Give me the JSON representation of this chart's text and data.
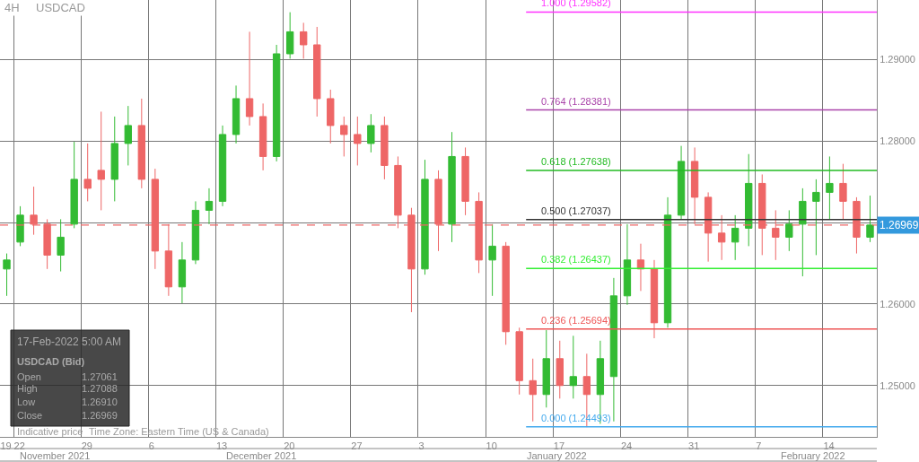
{
  "chart_data": {
    "type": "candlestick",
    "title": "4H",
    "subtitle": "USDCAD",
    "categories": [
      "19",
      "22",
      null,
      null,
      null,
      null,
      "29",
      null,
      null,
      null,
      null,
      "6",
      null,
      null,
      null,
      null,
      "13",
      null,
      null,
      null,
      null,
      "20",
      null,
      null,
      null,
      null,
      "27",
      null,
      null,
      null,
      null,
      "3",
      null,
      null,
      null,
      null,
      "10",
      null,
      null,
      null,
      null,
      "17",
      null,
      null,
      null,
      null,
      "24",
      null,
      null,
      null,
      null,
      "31",
      null,
      null,
      null,
      null,
      "7",
      null,
      null,
      null,
      null,
      "14",
      null,
      null,
      null
    ],
    "ohlc": [
      [
        1.2643,
        1.2662,
        1.261,
        1.2654
      ],
      [
        1.2676,
        1.272,
        1.2671,
        1.2709
      ],
      [
        1.2709,
        1.2744,
        1.2685,
        1.2698
      ],
      [
        1.2698,
        1.2704,
        1.2643,
        1.266
      ],
      [
        1.266,
        1.2704,
        1.264,
        1.2682
      ],
      [
        1.2698,
        1.2799,
        1.2693,
        1.2753
      ],
      [
        1.2753,
        1.2797,
        1.2726,
        1.2742
      ],
      [
        1.2764,
        1.2836,
        1.2715,
        1.2753
      ],
      [
        1.2753,
        1.283,
        1.2726,
        1.2797
      ],
      [
        1.2797,
        1.2843,
        1.277,
        1.2819
      ],
      [
        1.2819,
        1.2852,
        1.2742,
        1.2753
      ],
      [
        1.2753,
        1.2766,
        1.2643,
        1.2665
      ],
      [
        1.2665,
        1.2698,
        1.261,
        1.2621
      ],
      [
        1.2621,
        1.2676,
        1.2601,
        1.2654
      ],
      [
        1.2654,
        1.2726,
        1.2649,
        1.2715
      ],
      [
        1.2715,
        1.2742,
        1.2698,
        1.2726
      ],
      [
        1.2726,
        1.2819,
        1.272,
        1.2808
      ],
      [
        1.2808,
        1.2868,
        1.2797,
        1.2852
      ],
      [
        1.2852,
        1.2934,
        1.2819,
        1.283
      ],
      [
        1.283,
        1.2846,
        1.2764,
        1.2781
      ],
      [
        1.2781,
        1.2918,
        1.2775,
        1.2907
      ],
      [
        1.2907,
        1.2958,
        1.2901,
        1.2934
      ],
      [
        1.2934,
        1.2945,
        1.2901,
        1.2918
      ],
      [
        1.2918,
        1.294,
        1.283,
        1.2852
      ],
      [
        1.2852,
        1.2863,
        1.2797,
        1.2819
      ],
      [
        1.2819,
        1.283,
        1.2781,
        1.2808
      ],
      [
        1.2808,
        1.283,
        1.277,
        1.2797
      ],
      [
        1.2797,
        1.2833,
        1.2786,
        1.2819
      ],
      [
        1.2819,
        1.283,
        1.2753,
        1.277
      ],
      [
        1.277,
        1.2781,
        1.2693,
        1.2709
      ],
      [
        1.2709,
        1.2718,
        1.259,
        1.2643
      ],
      [
        1.2643,
        1.2777,
        1.2636,
        1.2753
      ],
      [
        1.2753,
        1.2764,
        1.2665,
        1.2698
      ],
      [
        1.2698,
        1.2811,
        1.2676,
        1.2781
      ],
      [
        1.2781,
        1.2792,
        1.2709,
        1.2726
      ],
      [
        1.2726,
        1.2737,
        1.2638,
        1.2654
      ],
      [
        1.2654,
        1.2698,
        1.261,
        1.2671
      ],
      [
        1.2671,
        1.2676,
        1.255,
        1.2566
      ],
      [
        1.2566,
        1.2571,
        1.2489,
        1.2506
      ],
      [
        1.2506,
        1.2533,
        1.2456,
        1.2489
      ],
      [
        1.2489,
        1.2568,
        1.2473,
        1.2533
      ],
      [
        1.2533,
        1.2555,
        1.2484,
        1.25
      ],
      [
        1.25,
        1.2561,
        1.2484,
        1.2511
      ],
      [
        1.2511,
        1.2539,
        1.2449,
        1.2489
      ],
      [
        1.2489,
        1.2555,
        1.2453,
        1.2533
      ],
      [
        1.2511,
        1.2632,
        1.2456,
        1.261
      ],
      [
        1.261,
        1.2698,
        1.2599,
        1.2654
      ],
      [
        1.2654,
        1.2674,
        1.2616,
        1.2643
      ],
      [
        1.2643,
        1.2654,
        1.2558,
        1.2577
      ],
      [
        1.2577,
        1.2731,
        1.2571,
        1.2709
      ],
      [
        1.2709,
        1.2794,
        1.2704,
        1.2775
      ],
      [
        1.2775,
        1.2792,
        1.2698,
        1.2731
      ],
      [
        1.2731,
        1.2737,
        1.2652,
        1.2687
      ],
      [
        1.2687,
        1.2709,
        1.2654,
        1.2676
      ],
      [
        1.2676,
        1.2709,
        1.2654,
        1.2693
      ],
      [
        1.2693,
        1.2784,
        1.2671,
        1.2748
      ],
      [
        1.2748,
        1.2759,
        1.266,
        1.2693
      ],
      [
        1.2693,
        1.2715,
        1.2654,
        1.2682
      ],
      [
        1.2682,
        1.2715,
        1.2665,
        1.2698
      ],
      [
        1.2698,
        1.2742,
        1.2634,
        1.2726
      ],
      [
        1.2726,
        1.2753,
        1.266,
        1.2737
      ],
      [
        1.2737,
        1.2781,
        1.2704,
        1.2748
      ],
      [
        1.2748,
        1.2772,
        1.2704,
        1.2726
      ],
      [
        1.2726,
        1.2731,
        1.2662,
        1.2682
      ],
      [
        1.2682,
        1.2733,
        1.2676,
        1.26969
      ]
    ],
    "ylim": [
      1.2437,
      1.2973
    ],
    "yticks": [
      {
        "value": 1.25,
        "label": "1.25000"
      },
      {
        "value": 1.26,
        "label": "1.26000"
      },
      {
        "value": 1.27,
        "label": null
      },
      {
        "value": 1.28,
        "label": "1.28000"
      },
      {
        "value": 1.29,
        "label": "1.29000"
      }
    ],
    "grid": true,
    "ref_lines": [
      {
        "axis": "y",
        "value": 1.29582,
        "label": "1.000 (1.29582)",
        "color": "#ff33ff",
        "line_style": "solid"
      },
      {
        "axis": "y",
        "value": 1.28381,
        "label": "0.764 (1.28381)",
        "color": "#aa44aa",
        "line_style": "solid"
      },
      {
        "axis": "y",
        "value": 1.27638,
        "label": "0.618 (1.27638)",
        "color": "#22bb22",
        "line_style": "solid"
      },
      {
        "axis": "y",
        "value": 1.27037,
        "label": "0.500 (1.27037)",
        "color": "#333333",
        "line_style": "solid"
      },
      {
        "axis": "y",
        "value": 1.26437,
        "label": "0.382 (1.26437)",
        "color": "#33ee33",
        "line_style": "solid"
      },
      {
        "axis": "y",
        "value": 1.25694,
        "label": "0.236 (1.25694)",
        "color": "#ee5555",
        "line_style": "solid"
      },
      {
        "axis": "y",
        "value": 1.24493,
        "label": "0.000 (1.24493)",
        "color": "#44aaee",
        "line_style": "solid"
      },
      {
        "axis": "y",
        "value": 1.26969,
        "label": "1.26969",
        "color": "#ee6666",
        "line_style": "dashed"
      }
    ],
    "annotations": [
      "17-Feb-2022 5:00 AM",
      "USDCAD (Bid)",
      "Open",
      "1.27061",
      "High",
      "1.27088",
      "Low",
      "1.26910",
      "Close",
      "1.26969",
      "Indicative price",
      "Time Zone: Eastern Time (US & Canada)",
      "November 2021",
      "December 2021",
      "January 2022",
      "February 2022"
    ]
  }
}
